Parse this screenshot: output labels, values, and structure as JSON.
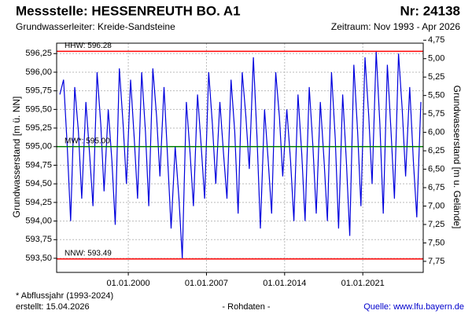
{
  "chart_data": {
    "type": "line",
    "title": "Messstelle: HESSENREUTH BO. A1",
    "number": "Nr: 24138",
    "subtitle": "Grundwasserleiter:  Kreide-Sandsteine",
    "period": "Zeitraum: Nov 1993 - Apr 2026",
    "ylabel": "Grundwasserstand [m ü. NN]",
    "y2label": "Grundwasserstand [m u. Gelände]",
    "footnote": "* Abflussjahr (1993-2024)",
    "created": "erstellt:  15.04.2026",
    "data_note": "- Rohdaten -",
    "source": "Quelle: www.lfu.bayern.de",
    "grid": true,
    "xlim": [
      "1993-08-01",
      "2026-06-01"
    ],
    "xticks": [
      {
        "value": "2000-01-01",
        "label": "01.01.2000"
      },
      {
        "value": "2007-01-01",
        "label": "01.01.2007"
      },
      {
        "value": "2014-01-01",
        "label": "01.01.2014"
      },
      {
        "value": "2021-01-01",
        "label": "01.01.2021"
      }
    ],
    "ylim": [
      593.31,
      596.39
    ],
    "yticks": [
      {
        "value": 593.5,
        "label": "593,50"
      },
      {
        "value": 593.75,
        "label": "593,75"
      },
      {
        "value": 594.0,
        "label": "594,00"
      },
      {
        "value": 594.25,
        "label": "594,25"
      },
      {
        "value": 594.5,
        "label": "594,50"
      },
      {
        "value": 594.75,
        "label": "594,75"
      },
      {
        "value": 595.0,
        "label": "595,00"
      },
      {
        "value": 595.25,
        "label": "595,25"
      },
      {
        "value": 595.5,
        "label": "595,50"
      },
      {
        "value": 595.75,
        "label": "595,75"
      },
      {
        "value": 596.0,
        "label": "596,00"
      },
      {
        "value": 596.25,
        "label": "596,25"
      }
    ],
    "y2lim": [
      7.9,
      4.79
    ],
    "y2ticks": [
      {
        "value": 4.75,
        "label": "4,75"
      },
      {
        "value": 5.0,
        "label": "5,00"
      },
      {
        "value": 5.25,
        "label": "5,25"
      },
      {
        "value": 5.5,
        "label": "5,50"
      },
      {
        "value": 5.75,
        "label": "5,75"
      },
      {
        "value": 6.0,
        "label": "6,00"
      },
      {
        "value": 6.25,
        "label": "6,25"
      },
      {
        "value": 6.5,
        "label": "6,50"
      },
      {
        "value": 6.75,
        "label": "6,75"
      },
      {
        "value": 7.0,
        "label": "7,00"
      },
      {
        "value": 7.25,
        "label": "7,25"
      },
      {
        "value": 7.5,
        "label": "7,50"
      },
      {
        "value": 7.75,
        "label": "7,75"
      }
    ],
    "reference_lines": [
      {
        "label": "HHW: 596.28",
        "value": 596.28,
        "color": "#ff0000"
      },
      {
        "label": "MW*: 595.00",
        "value": 595.0,
        "color": "#008000"
      },
      {
        "label": "NNW: 593.49",
        "value": 593.49,
        "color": "#ff0000"
      }
    ],
    "series": [
      {
        "name": "Grundwasserstand",
        "color": "#0000dd",
        "x": [
          "1993-11-15",
          "1994-03-15",
          "1994-07-15",
          "1994-11-01",
          "1995-03-15",
          "1995-07-15",
          "1995-11-01",
          "1996-03-15",
          "1996-07-15",
          "1996-11-01",
          "1997-03-15",
          "1997-07-15",
          "1997-11-01",
          "1998-03-15",
          "1998-07-15",
          "1998-11-01",
          "1999-03-15",
          "1999-07-15",
          "1999-11-01",
          "2000-03-15",
          "2000-07-15",
          "2000-11-01",
          "2001-03-15",
          "2001-07-15",
          "2001-11-01",
          "2002-03-15",
          "2002-07-15",
          "2002-11-01",
          "2003-03-15",
          "2003-07-15",
          "2003-11-01",
          "2004-03-15",
          "2004-07-15",
          "2004-11-01",
          "2005-03-15",
          "2005-07-15",
          "2005-11-01",
          "2006-03-15",
          "2006-07-15",
          "2006-11-01",
          "2007-03-15",
          "2007-07-15",
          "2007-11-01",
          "2008-03-15",
          "2008-07-15",
          "2008-11-01",
          "2009-03-15",
          "2009-07-15",
          "2009-11-01",
          "2010-03-15",
          "2010-07-15",
          "2010-11-01",
          "2011-03-15",
          "2011-07-15",
          "2011-11-01",
          "2012-03-15",
          "2012-07-15",
          "2012-11-01",
          "2013-03-15",
          "2013-07-15",
          "2013-11-01",
          "2014-03-15",
          "2014-07-15",
          "2014-11-01",
          "2015-03-15",
          "2015-07-15",
          "2015-11-01",
          "2016-03-15",
          "2016-07-15",
          "2016-11-01",
          "2017-03-15",
          "2017-07-15",
          "2017-11-01",
          "2018-03-15",
          "2018-07-15",
          "2018-11-01",
          "2019-03-15",
          "2019-07-15",
          "2019-11-01",
          "2020-03-15",
          "2020-07-15",
          "2020-11-01",
          "2021-03-15",
          "2021-07-15",
          "2021-11-01",
          "2022-03-15",
          "2022-07-15",
          "2022-11-01",
          "2023-03-15",
          "2023-07-15",
          "2023-11-01",
          "2024-03-15",
          "2024-07-15",
          "2024-11-01",
          "2025-03-15",
          "2025-07-15",
          "2025-11-01",
          "2026-03-15"
        ],
        "values": [
          595.7,
          595.9,
          595.0,
          594.0,
          595.8,
          595.2,
          594.3,
          595.6,
          594.9,
          594.2,
          596.0,
          595.3,
          594.4,
          595.5,
          594.8,
          593.95,
          596.05,
          595.3,
          594.5,
          595.9,
          595.1,
          594.3,
          596.0,
          595.2,
          594.2,
          596.05,
          595.4,
          594.6,
          595.8,
          594.8,
          593.9,
          595.0,
          594.3,
          593.5,
          595.6,
          594.9,
          594.2,
          595.7,
          595.0,
          594.3,
          596.0,
          595.3,
          594.5,
          595.6,
          594.9,
          594.3,
          595.9,
          595.2,
          594.1,
          596.0,
          595.4,
          594.7,
          596.2,
          595.1,
          593.9,
          595.5,
          594.8,
          594.1,
          596.0,
          595.4,
          594.6,
          595.5,
          594.8,
          594.0,
          595.7,
          594.9,
          594.0,
          595.8,
          595.0,
          594.1,
          595.6,
          594.8,
          594.0,
          596.0,
          595.1,
          593.9,
          595.7,
          594.8,
          593.8,
          596.1,
          595.2,
          594.2,
          596.2,
          595.4,
          594.5,
          596.28,
          595.3,
          594.1,
          596.1,
          595.2,
          594.3,
          596.25,
          595.5,
          594.6,
          595.8,
          594.8,
          594.05,
          595.6
        ]
      }
    ]
  }
}
